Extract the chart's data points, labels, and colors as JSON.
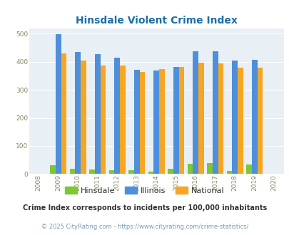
{
  "title": "Hinsdale Violent Crime Index",
  "title_color": "#1a6fa8",
  "years": [
    2009,
    2010,
    2011,
    2012,
    2013,
    2014,
    2015,
    2016,
    2017,
    2018,
    2019
  ],
  "hinsdale": [
    30,
    18,
    15,
    13,
    14,
    7,
    18,
    35,
    38,
    10,
    33
  ],
  "illinois": [
    498,
    435,
    428,
    414,
    372,
    370,
    383,
    438,
    438,
    405,
    408
  ],
  "national": [
    430,
    405,
    387,
    387,
    365,
    374,
    383,
    397,
    395,
    379,
    379
  ],
  "hinsdale_color": "#7dc832",
  "illinois_color": "#4d8fdb",
  "national_color": "#f5a623",
  "bg_color": "#e8f0f5",
  "xlim": [
    2007.5,
    2020.5
  ],
  "ylim": [
    0,
    520
  ],
  "yticks": [
    0,
    100,
    200,
    300,
    400,
    500
  ],
  "xticks": [
    2008,
    2009,
    2010,
    2011,
    2012,
    2013,
    2014,
    2015,
    2016,
    2017,
    2018,
    2019,
    2020
  ],
  "footnote1": "Crime Index corresponds to incidents per 100,000 inhabitants",
  "footnote2": "© 2025 CityRating.com - https://www.cityrating.com/crime-statistics/",
  "footnote1_color": "#333333",
  "footnote2_color": "#7a9ab5",
  "bar_width": 0.28
}
